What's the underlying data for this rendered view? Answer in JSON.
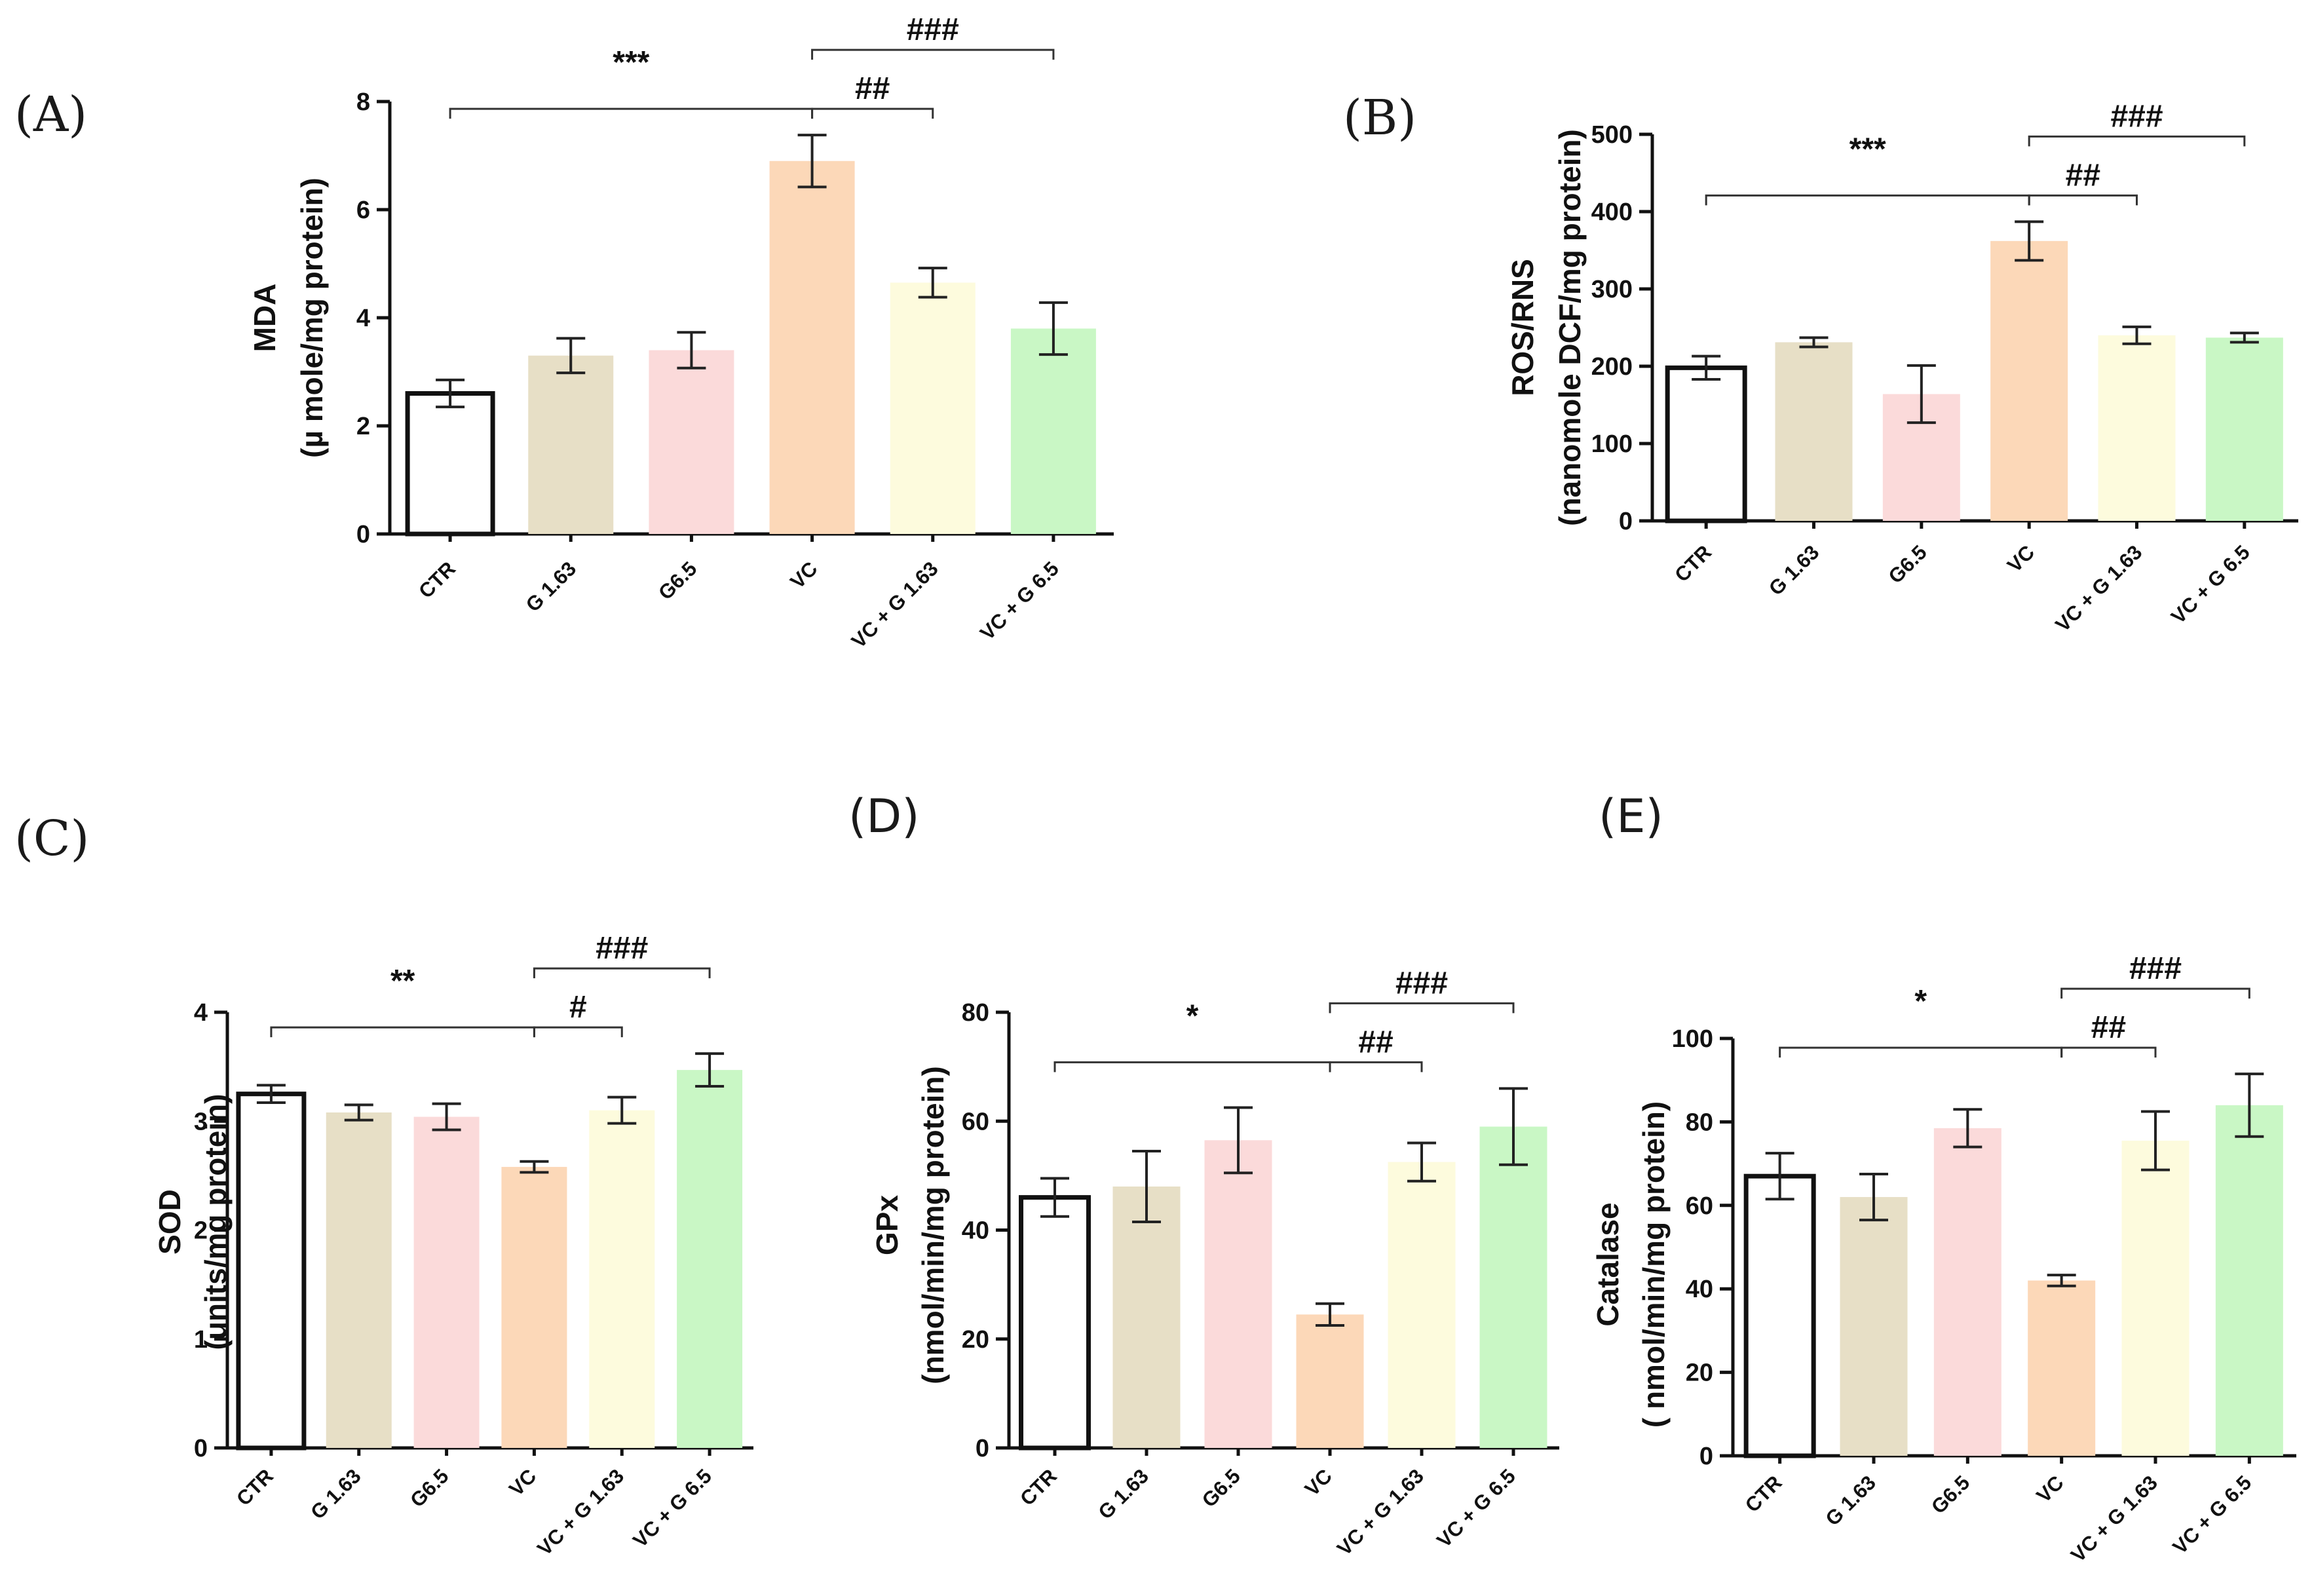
{
  "group_colors": {
    "CTR": "#ffffff",
    "G 1.63": "#e7dfc6",
    "G6.5": "#fbdada",
    "VC": "#fcd8b8",
    "VC + G 1.63": "#fdfbdd",
    "VC + G 6.5": "#c9f7c5"
  },
  "chart_data": [
    {
      "panel": "(A)",
      "type": "bar",
      "ylabel": "MDA",
      "ylabel2": "(µ mole/mg protein)",
      "categories": [
        "CTR",
        "G 1.63",
        "G6.5",
        "VC",
        "VC + G 1.63",
        "VC + G 6.5"
      ],
      "values": [
        2.6,
        3.3,
        3.4,
        6.9,
        4.65,
        3.8
      ],
      "errors": [
        0.25,
        0.32,
        0.33,
        0.48,
        0.27,
        0.48
      ],
      "ylim": [
        0,
        8
      ],
      "yticks": [
        0,
        2,
        4,
        6,
        8
      ],
      "significance": [
        {
          "from": 0,
          "to": 3,
          "label": "***"
        },
        {
          "from": 3,
          "to": 4,
          "label": "##"
        },
        {
          "from": 3,
          "to": 5,
          "label": "###"
        }
      ]
    },
    {
      "panel": "(B)",
      "type": "bar",
      "ylabel": "ROS/RNS",
      "ylabel2": "(nanomole DCF/mg protein)",
      "categories": [
        "CTR",
        "G 1.63",
        "G6.5",
        "VC",
        "VC + G 1.63",
        "VC + G 6.5"
      ],
      "values": [
        198,
        231,
        164,
        362,
        240,
        237
      ],
      "errors": [
        15,
        6,
        37,
        25,
        11,
        6
      ],
      "ylim": [
        0,
        500
      ],
      "yticks": [
        0,
        100,
        200,
        300,
        400,
        500
      ],
      "significance": [
        {
          "from": 0,
          "to": 3,
          "label": "***"
        },
        {
          "from": 3,
          "to": 4,
          "label": "##"
        },
        {
          "from": 3,
          "to": 5,
          "label": "###"
        }
      ]
    },
    {
      "panel": "(C)",
      "type": "bar",
      "ylabel": "SOD",
      "ylabel2": "(units/mg protein)",
      "categories": [
        "CTR",
        "G 1.63",
        "G6.5",
        "VC",
        "VC + G 1.63",
        "VC + G 6.5"
      ],
      "values": [
        3.25,
        3.08,
        3.04,
        2.58,
        3.1,
        3.47
      ],
      "errors": [
        0.08,
        0.07,
        0.12,
        0.05,
        0.12,
        0.15
      ],
      "ylim": [
        0,
        4
      ],
      "yticks": [
        0,
        1,
        2,
        3,
        4
      ],
      "significance": [
        {
          "from": 0,
          "to": 3,
          "label": "**"
        },
        {
          "from": 3,
          "to": 4,
          "label": "#"
        },
        {
          "from": 3,
          "to": 5,
          "label": "###"
        }
      ]
    },
    {
      "panel": "(D)",
      "type": "bar",
      "ylabel": "GPx",
      "ylabel2": "(nmol/min/mg protein)",
      "categories": [
        "CTR",
        "G 1.63",
        "G6.5",
        "VC",
        "VC + G 1.63",
        "VC + G 6.5"
      ],
      "values": [
        46,
        48,
        56.5,
        24.5,
        52.5,
        59
      ],
      "errors": [
        3.5,
        6.5,
        6,
        2,
        3.5,
        7
      ],
      "ylim": [
        0,
        80
      ],
      "yticks": [
        0,
        20,
        40,
        60,
        80
      ],
      "significance": [
        {
          "from": 0,
          "to": 3,
          "label": "*"
        },
        {
          "from": 3,
          "to": 4,
          "label": "##"
        },
        {
          "from": 3,
          "to": 5,
          "label": "###"
        }
      ]
    },
    {
      "panel": "(E)",
      "type": "bar",
      "ylabel": "Catalase",
      "ylabel2": "( nmol/min/mg protein)",
      "categories": [
        "CTR",
        "G 1.63",
        "G6.5",
        "VC",
        "VC + G 1.63",
        "VC + G 6.5"
      ],
      "values": [
        67,
        62,
        78.5,
        42,
        75.5,
        84
      ],
      "errors": [
        5.5,
        5.5,
        4.5,
        1.3,
        7,
        7.5
      ],
      "ylim": [
        0,
        100
      ],
      "yticks": [
        0,
        20,
        40,
        60,
        80,
        100
      ],
      "significance": [
        {
          "from": 0,
          "to": 3,
          "label": "*"
        },
        {
          "from": 3,
          "to": 4,
          "label": "##"
        },
        {
          "from": 3,
          "to": 5,
          "label": "###"
        }
      ]
    }
  ]
}
